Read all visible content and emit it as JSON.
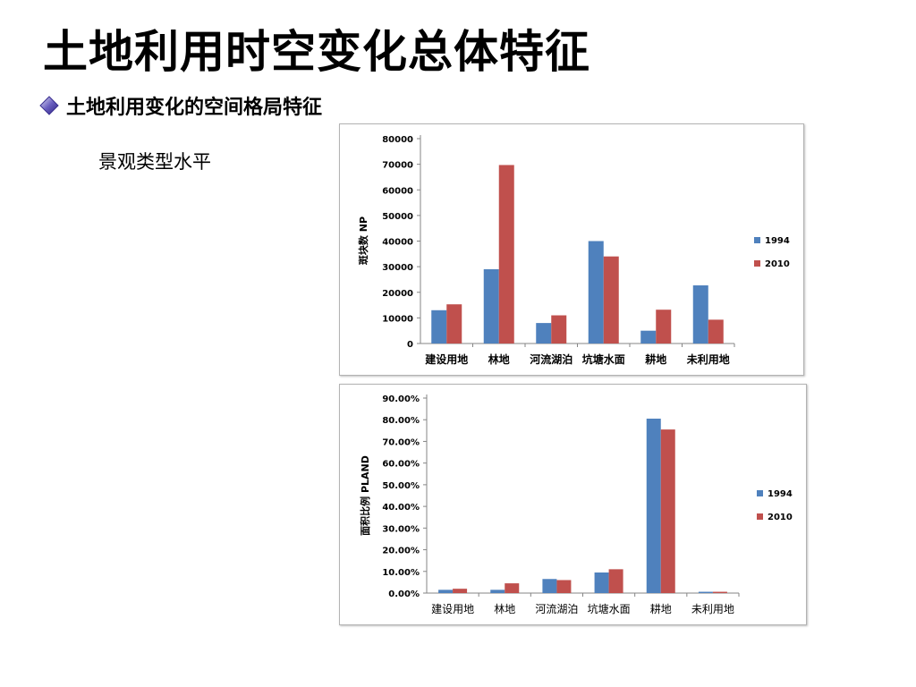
{
  "slide": {
    "title": "土地利用时空变化总体特征",
    "subtitle": "土地利用变化的空间格局特征",
    "note": "景观类型水平",
    "bullet_icon": "diamond-bullet-icon"
  },
  "colors": {
    "series_1994": "#4f81bd",
    "series_2010": "#c0504d"
  },
  "chart_data": [
    {
      "type": "bar",
      "categories": [
        "建设用地",
        "林地",
        "河流湖泊",
        "坑塘水面",
        "耕地",
        "未利用地"
      ],
      "series": [
        {
          "name": "1994",
          "values": [
            13000,
            29000,
            8000,
            40000,
            5000,
            22700
          ]
        },
        {
          "name": "2010",
          "values": [
            15300,
            69700,
            11000,
            34000,
            13200,
            9300
          ]
        }
      ],
      "ylabel": "斑块数 NP",
      "ylim": [
        0,
        80000
      ],
      "yticks": [
        "0",
        "10000",
        "20000",
        "30000",
        "40000",
        "50000",
        "60000",
        "70000",
        "80000"
      ],
      "grid": false,
      "legend": "right"
    },
    {
      "type": "bar",
      "categories": [
        "建设用地",
        "林地",
        "河流湖泊",
        "坑塘水面",
        "耕地",
        "未利用地"
      ],
      "series": [
        {
          "name": "1994",
          "values": [
            1.5,
            1.5,
            6.5,
            9.5,
            80.5,
            0.6
          ]
        },
        {
          "name": "2010",
          "values": [
            2.0,
            4.5,
            6.0,
            11.0,
            75.5,
            0.6
          ]
        }
      ],
      "ylabel": "面积比例 PLAND",
      "ylim": [
        0,
        90
      ],
      "yticks": [
        "0.00%",
        "10.00%",
        "20.00%",
        "30.00%",
        "40.00%",
        "50.00%",
        "60.00%",
        "70.00%",
        "80.00%",
        "90.00%"
      ],
      "grid": false,
      "legend": "right"
    }
  ]
}
